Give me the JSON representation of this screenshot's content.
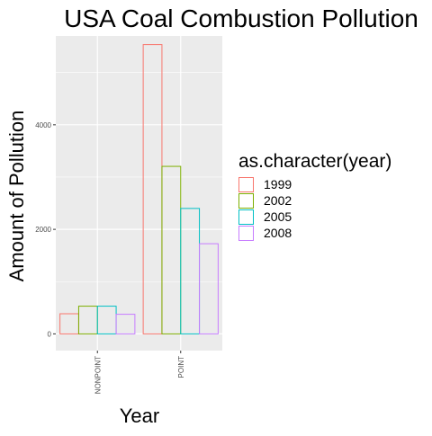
{
  "chart_data": {
    "type": "bar",
    "title": "USA Coal Combustion Pollution",
    "xlabel": "Year",
    "ylabel": "Amount of Pollution",
    "categories": [
      "NONPOINT",
      "POINT"
    ],
    "ylim": [
      -320,
      5700
    ],
    "y_ticks": [
      0,
      2000,
      4000
    ],
    "legend": {
      "title": "as.character(year)",
      "placement": "right"
    },
    "series": [
      {
        "name": "1999",
        "color": "#F8766D",
        "values": [
          385,
          5535
        ]
      },
      {
        "name": "2002",
        "color": "#7CAE00",
        "values": [
          530,
          3205
        ]
      },
      {
        "name": "2005",
        "color": "#00BFC4",
        "values": [
          530,
          2400
        ]
      },
      {
        "name": "2008",
        "color": "#C77CFF",
        "values": [
          375,
          1725
        ]
      }
    ],
    "panel_background": "#EBEBEB",
    "grid": true
  }
}
